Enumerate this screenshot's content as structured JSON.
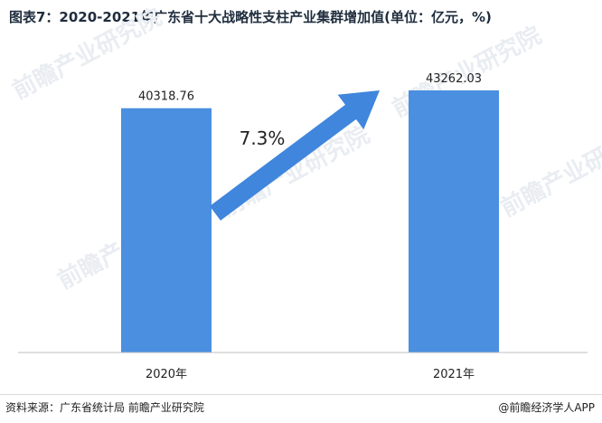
{
  "title": "图表7：2020-2021年广东省十大战略性支柱产业集群增加值(单位：亿元，%)",
  "chart_data": {
    "type": "bar",
    "categories": [
      "2020年",
      "2021年"
    ],
    "values": [
      40318.76,
      43262.03
    ],
    "value_labels": [
      "40318.76",
      "43262.03"
    ],
    "growth_annotation": "7.3%",
    "ylim": [
      0,
      45000
    ],
    "grid": false,
    "bar_color": "#4a8fe0",
    "arrow_color": "#3f86dc"
  },
  "watermark": "前瞻产业研究院",
  "footer": {
    "source": "资料来源：广东省统计局 前瞻产业研究院",
    "brand": "@前瞻经济学人APP"
  }
}
